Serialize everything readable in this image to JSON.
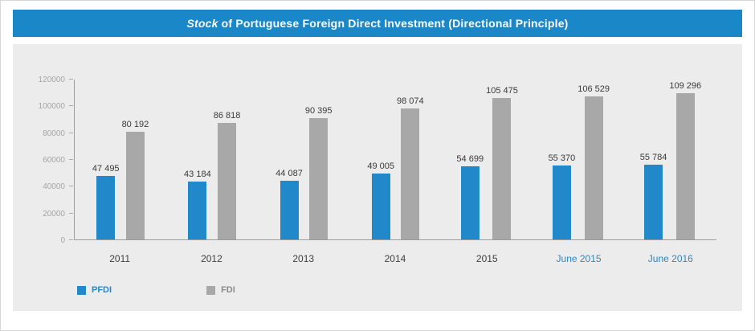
{
  "header": {
    "title_italic": "Stock",
    "title_rest": " of Portuguese Foreign Direct Investment (Directional Principle)"
  },
  "chart_data": {
    "type": "bar",
    "title": "Stock of Portuguese Foreign Direct Investment (Directional Principle)",
    "categories": [
      "2011",
      "2012",
      "2013",
      "2014",
      "2015",
      "June 2015",
      "June 2016"
    ],
    "category_colors": [
      "#3f3f3f",
      "#3f3f3f",
      "#3f3f3f",
      "#3f3f3f",
      "#3f3f3f",
      "#2e86c5",
      "#2e86c5"
    ],
    "series": [
      {
        "name": "PFDI",
        "color": "#2188c9",
        "values": [
          47495,
          43184,
          44087,
          49005,
          54699,
          55370,
          55784
        ],
        "labels": [
          "47 495",
          "43 184",
          "44 087",
          "49 005",
          "54 699",
          "55 370",
          "55 784"
        ]
      },
      {
        "name": "FDI",
        "color": "#a8a8a8",
        "values": [
          80192,
          86818,
          90395,
          98074,
          105475,
          106529,
          109296
        ],
        "labels": [
          "80 192",
          "86 818",
          "90 395",
          "98 074",
          "105 475",
          "106 529",
          "109 296"
        ]
      }
    ],
    "ylim": [
      0,
      120000
    ],
    "yticks": [
      0,
      20000,
      40000,
      60000,
      80000,
      100000,
      120000
    ],
    "ytick_labels": [
      "0",
      "20000",
      "40000",
      "60000",
      "80000",
      "100000",
      "120000"
    ],
    "grid": false,
    "legend_position": "bottom-left",
    "legend": [
      {
        "label": "PFDI",
        "color": "#2188c9",
        "text_color": "#2188c9"
      },
      {
        "label": "FDI",
        "color": "#a8a8a8",
        "text_color": "#8b8b8b"
      }
    ]
  }
}
